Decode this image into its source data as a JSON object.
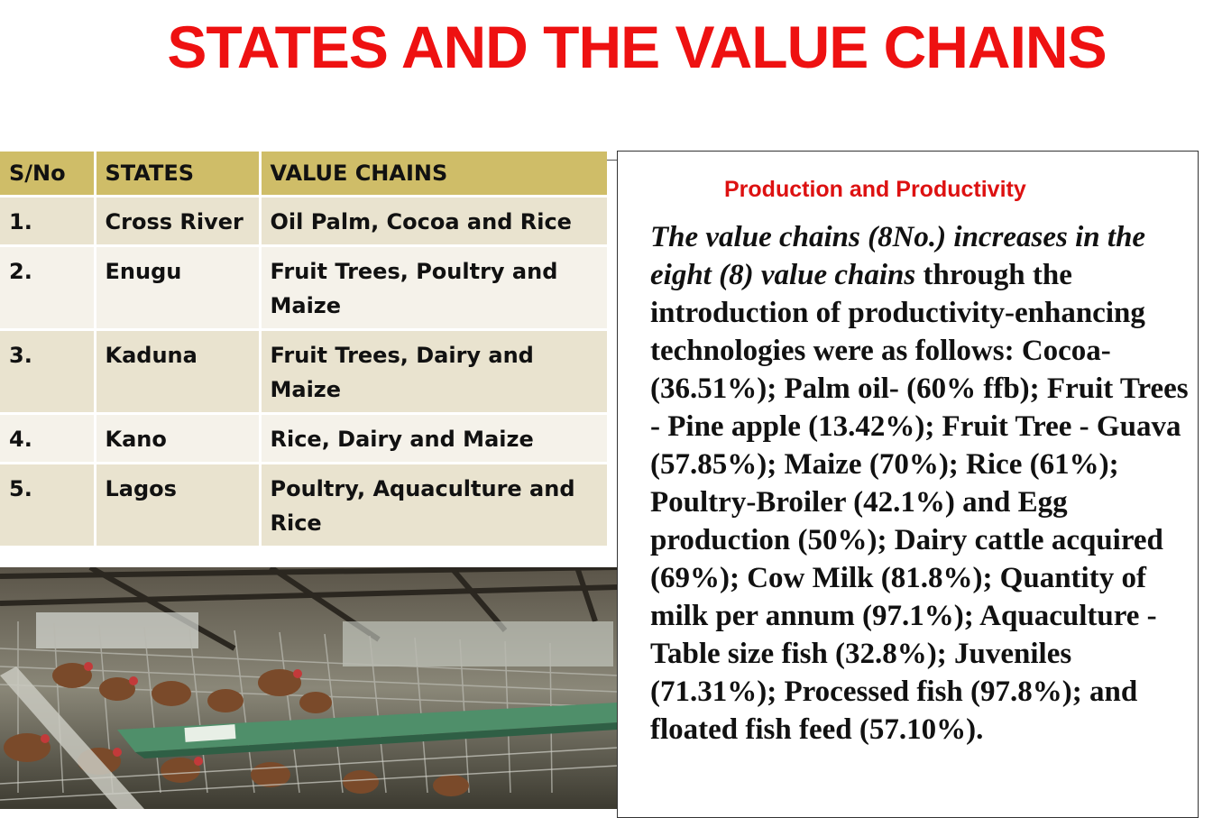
{
  "title": "STATES AND THE VALUE CHAINS",
  "table": {
    "headers": [
      "S/No",
      "STATES",
      "VALUE CHAINS"
    ],
    "rows": [
      {
        "sno": "1.",
        "state": "Cross River",
        "value_chains": "Oil Palm, Cocoa and Rice"
      },
      {
        "sno": "2.",
        "state": "Enugu",
        "value_chains": "Fruit Trees, Poultry and Maize"
      },
      {
        "sno": "3.",
        "state": "Kaduna",
        "value_chains": "Fruit Trees, Dairy and Maize"
      },
      {
        "sno": "4.",
        "state": "Kano",
        "value_chains": "Rice, Dairy and Maize"
      },
      {
        "sno": "5.",
        "state": "Lagos",
        "value_chains": "Poultry, Aquaculture and Rice"
      }
    ]
  },
  "photo": {
    "subject": "poultry-cages-photo"
  },
  "textbox": {
    "heading": "Production and Productivity",
    "italic_lead": "The value chains (8No.)  increases in the eight (8) value chains",
    "body": " through the introduction of productivity-enhancing technologies were as follows: Cocoa- (36.51%); Palm oil- (60% ffb); Fruit Trees - Pine apple (13.42%); Fruit Tree - Guava (57.85%);  Maize  (70%); Rice (61%); Poultry-Broiler (42.1%) and Egg production (50%); Dairy cattle acquired (69%); Cow Milk (81.8%); Quantity of milk per annum (97.1%); Aquaculture - Table size fish (32.8%); Juveniles  (71.31%); Processed fish (97.8%); and floated fish feed (57.10%)."
  },
  "colors": {
    "title": "#ee1111",
    "header_bg": "#cfbd68",
    "row_odd": "#e9e3cf",
    "row_even": "#f5f2ea"
  }
}
